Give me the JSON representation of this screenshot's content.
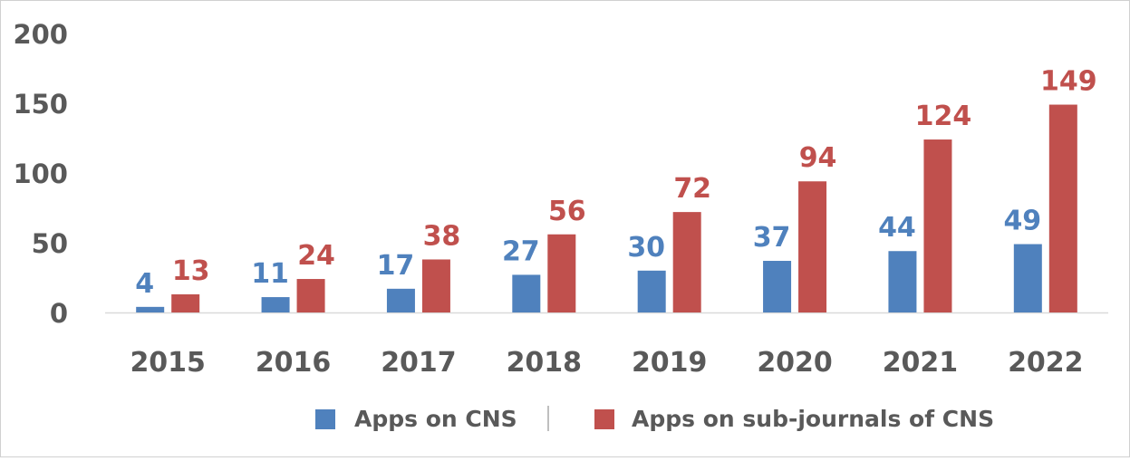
{
  "chart_data": {
    "type": "bar",
    "title": "",
    "xlabel": "",
    "ylabel": "",
    "categories": [
      "2015",
      "2016",
      "2017",
      "2018",
      "2019",
      "2020",
      "2021",
      "2022"
    ],
    "ylim": [
      0,
      200
    ],
    "yticks": [
      0,
      50,
      100,
      150,
      200
    ],
    "ytick_labels": [
      "0",
      "50",
      "100",
      "150",
      "200"
    ],
    "grid": false,
    "legend_position": "bottom",
    "data_labels": true,
    "series": [
      {
        "name": "Apps on CNS",
        "values": [
          4,
          11,
          17,
          27,
          30,
          37,
          44,
          49
        ],
        "color": "#4f81bd"
      },
      {
        "name": "Apps on sub-journals of CNS",
        "values": [
          13,
          24,
          38,
          56,
          72,
          94,
          124,
          149
        ],
        "color": "#c0504d"
      }
    ],
    "tick_label_color": "#595959",
    "axis_line_color": "#d9d9d9",
    "legend_separator_color": "#7f7f7f"
  }
}
